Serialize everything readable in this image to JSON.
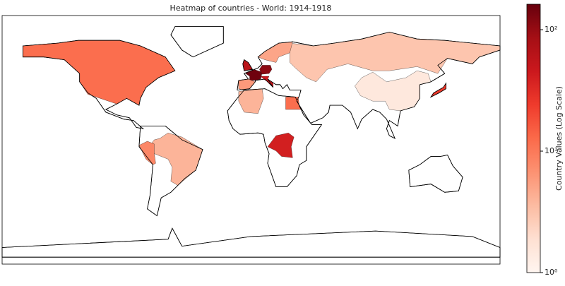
{
  "chart_data": {
    "type": "choropleth",
    "title": "Heatmap of countries - World: 1914-1918",
    "values": [
      12,
      150,
      110,
      60,
      45,
      3,
      1.5,
      25,
      4,
      8,
      40,
      12,
      4,
      5,
      6
    ],
    "log_scale": true,
    "colormap": [
      "#fff5f0",
      "#fee0d2",
      "#fcbba1",
      "#fc9272",
      "#fb6a4a",
      "#ef3b2c",
      "#cb181d",
      "#a50f15",
      "#67000d"
    ],
    "colorbar": {
      "label": "Country Values (Log Scale)",
      "lim": [
        1,
        162
      ],
      "ticks": [
        {
          "value": 1,
          "label": "10⁰"
        },
        {
          "value": 10,
          "label": "10¹"
        },
        {
          "value": 100,
          "label": "10²"
        }
      ]
    }
  }
}
